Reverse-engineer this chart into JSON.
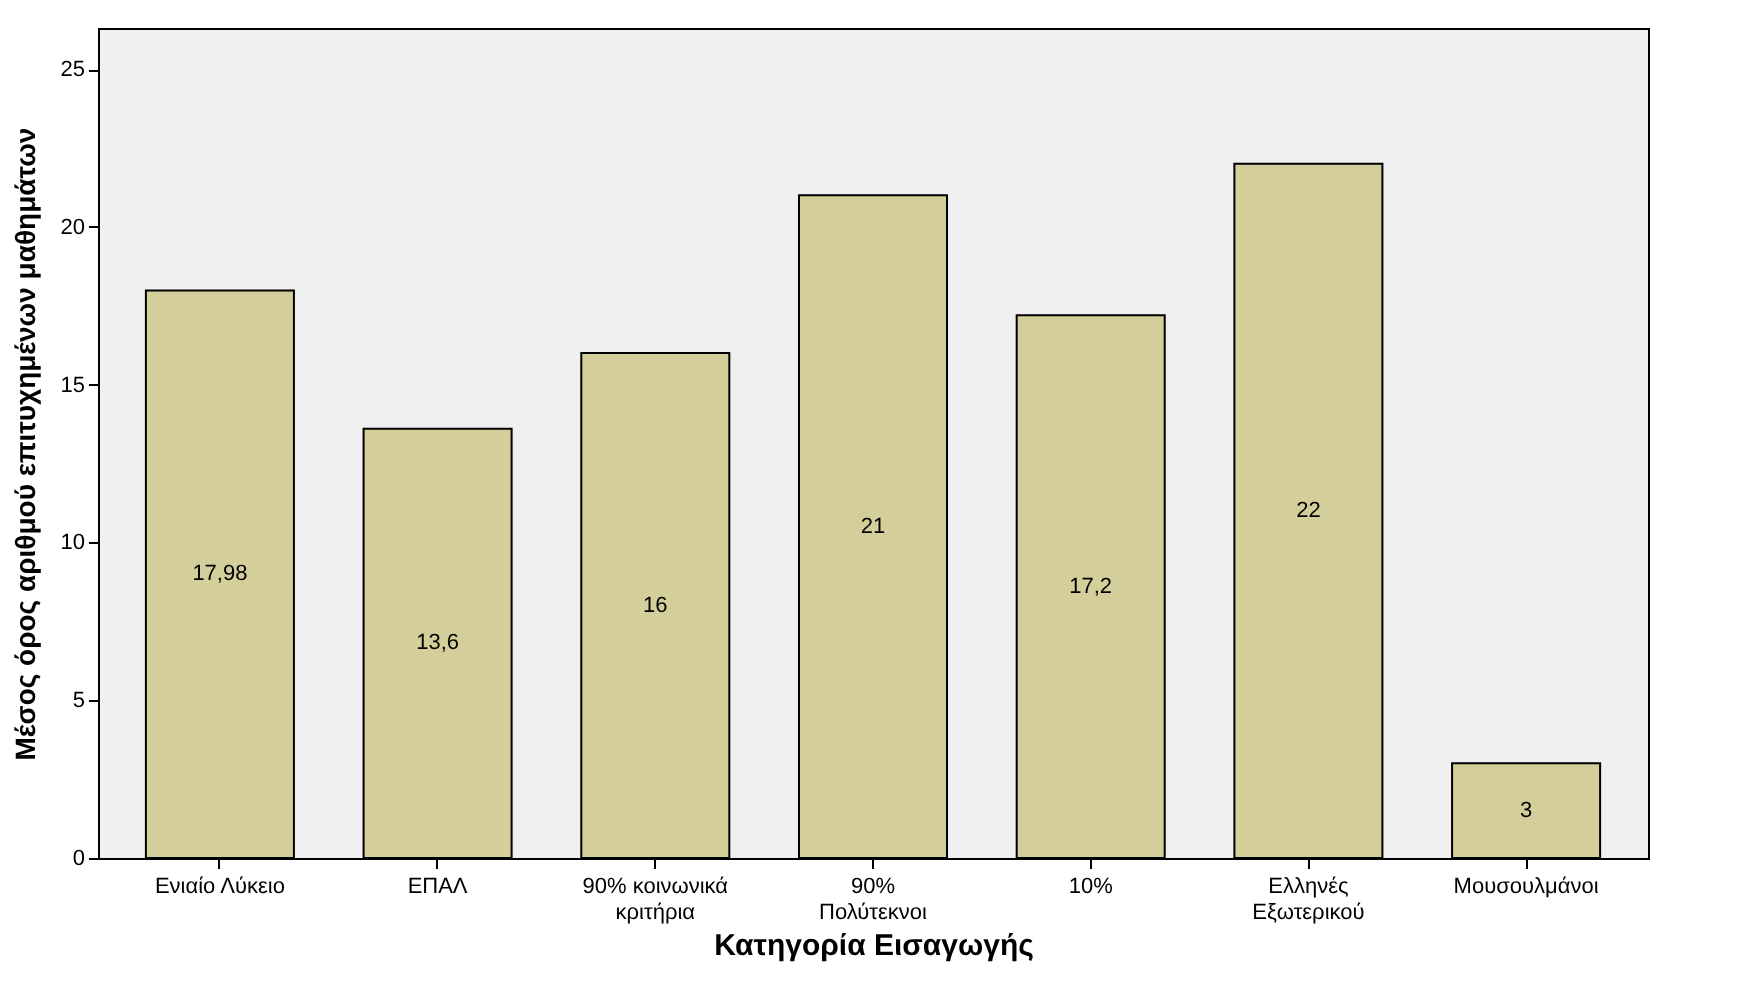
{
  "chart_data": {
    "type": "bar",
    "xlabel": "Κατηγορία Εισαγωγής",
    "ylabel": "Μέσος όρος  αριθμού επιτυχημένων μαθημάτων",
    "categories": [
      "Ενιαίο Λύκειο",
      "ΕΠΑΛ",
      "90% κοινωνικά\nκριτήρια",
      "90%\nΠολύτεκνοι",
      "10%",
      "Ελληνές\nΕξωτερικού",
      "Μουσουλμάνοι"
    ],
    "values": [
      17.98,
      13.6,
      16,
      21,
      17.2,
      22,
      3
    ],
    "value_labels": [
      "17,98",
      "13,6",
      "16",
      "21",
      "17,2",
      "22",
      "3"
    ],
    "color": "#d3ce9a",
    "ylim": [
      0,
      26.3
    ],
    "yticks": [
      0,
      5,
      10,
      15,
      20,
      25
    ],
    "grid": false
  }
}
